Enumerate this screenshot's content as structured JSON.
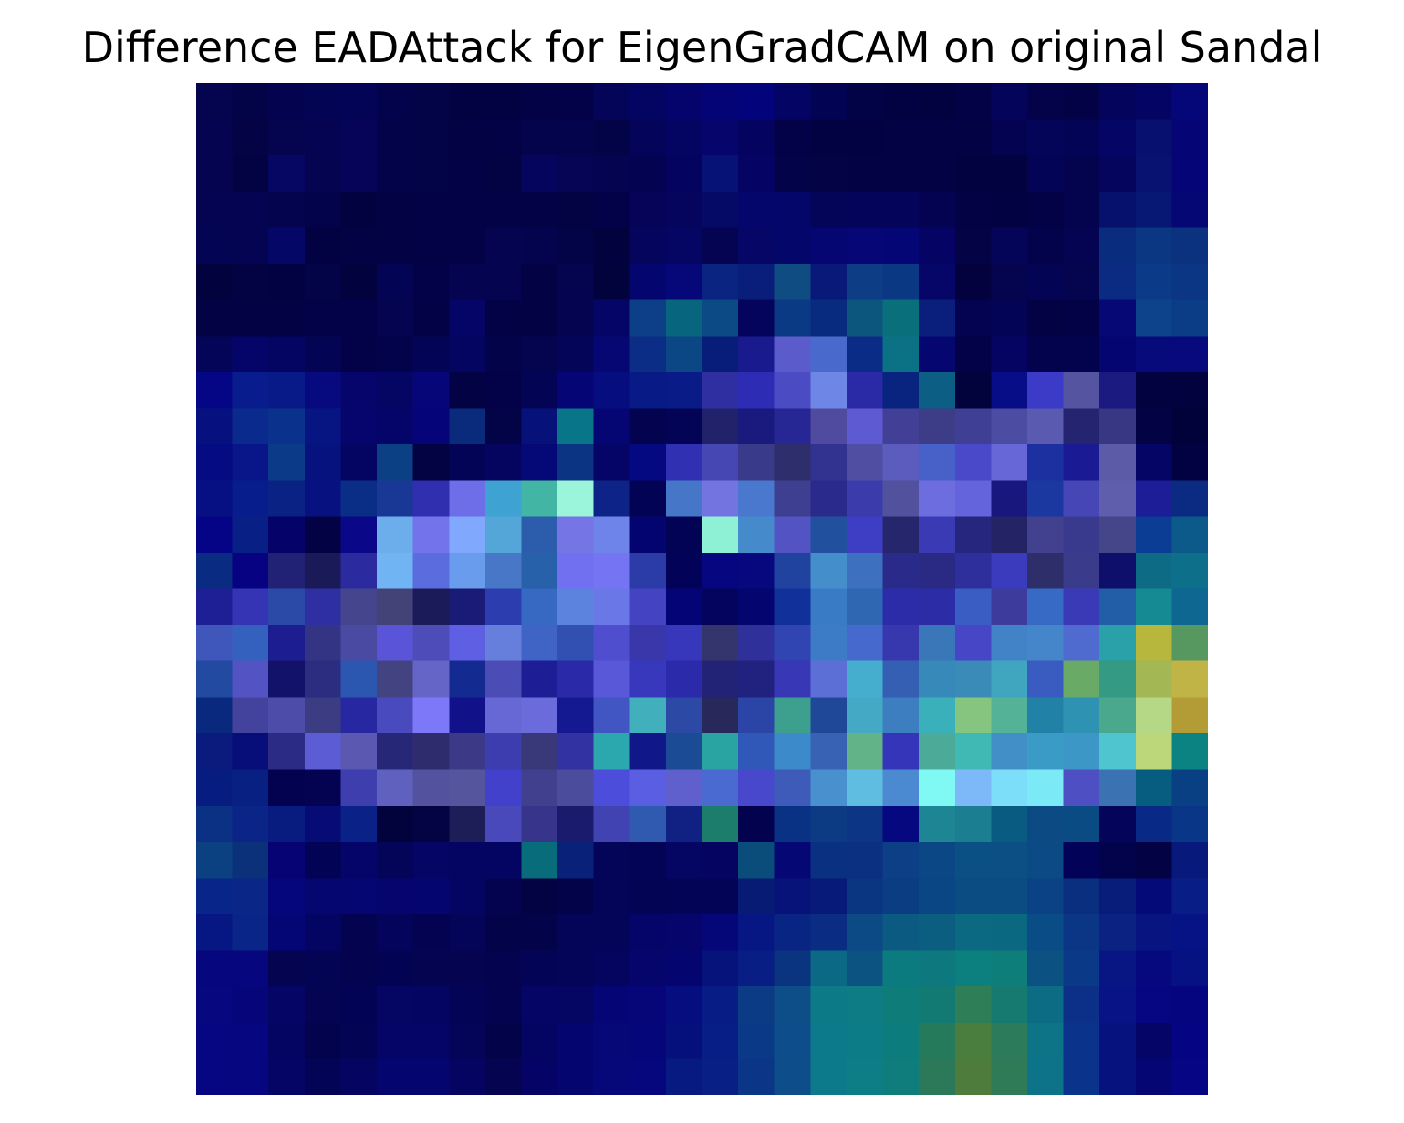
{
  "chart_data": {
    "type": "heatmap",
    "title": "Difference EADAttack for EigenGradCAM on original Sandal",
    "xlabel": "",
    "ylabel": "",
    "axes_visible": false,
    "grid": false,
    "rows": 28,
    "cols": 28,
    "colors": [
      [
        "#04044f",
        "#030348",
        "#030350",
        "#040455",
        "#040456",
        "#03034c",
        "#030348",
        "#020243",
        "#020242",
        "#030247",
        "#030249",
        "#040458",
        "#040463",
        "#04046c",
        "#040477",
        "#03037c",
        "#040465",
        "#030353",
        "#020246",
        "#020242",
        "#020241",
        "#030246",
        "#04045a",
        "#040249",
        "#030247",
        "#04045d",
        "#040464",
        "#050677"
      ],
      [
        "#040450",
        "#030346",
        "#04044f",
        "#040452",
        "#050458",
        "#03034a",
        "#030348",
        "#020244",
        "#030246",
        "#04044c",
        "#04044c",
        "#030348",
        "#04045a",
        "#040462",
        "#05056b",
        "#040460",
        "#030249",
        "#020243",
        "#020243",
        "#020244",
        "#020244",
        "#020245",
        "#030352",
        "#040458",
        "#040457",
        "#050566",
        "#07106f",
        "#050575"
      ],
      [
        "#040450",
        "#030344",
        "#050763",
        "#040450",
        "#050458",
        "#030349",
        "#030348",
        "#030247",
        "#030243",
        "#05055d",
        "#050455",
        "#040450",
        "#030351",
        "#040460",
        "#061275",
        "#050465",
        "#03034a",
        "#030346",
        "#020244",
        "#020244",
        "#020244",
        "#020240",
        "#020241",
        "#040457",
        "#04044e",
        "#05055e",
        "#081371",
        "#060578"
      ],
      [
        "#040452",
        "#040452",
        "#04044e",
        "#03034b",
        "#020241",
        "#020244",
        "#030247",
        "#030246",
        "#030246",
        "#030247",
        "#030243",
        "#030249",
        "#050458",
        "#05055e",
        "#060a67",
        "#05066c",
        "#050669",
        "#040458",
        "#04045a",
        "#04045a",
        "#030351",
        "#020244",
        "#020243",
        "#030247",
        "#04044e",
        "#05116c",
        "#061873",
        "#050874"
      ],
      [
        "#040455",
        "#040453",
        "#050766",
        "#020242",
        "#020244",
        "#020245",
        "#030246",
        "#030247",
        "#040451",
        "#04044e",
        "#030347",
        "#02023f",
        "#05055d",
        "#050563",
        "#040453",
        "#050665",
        "#05066a",
        "#060673",
        "#060676",
        "#050676",
        "#050464",
        "#030346",
        "#040459",
        "#03034b",
        "#040452",
        "#0a2c7f",
        "#0b3682",
        "#0b327f"
      ],
      [
        "#02023f",
        "#030242",
        "#020243",
        "#030348",
        "#02023f",
        "#040454",
        "#030248",
        "#040450",
        "#040450",
        "#030245",
        "#04044f",
        "#02023c",
        "#050570",
        "#06087a",
        "#0a2481",
        "#091e7b",
        "#0f4c81",
        "#09197a",
        "#0c3d85",
        "#0b3882",
        "#060668",
        "#03023f",
        "#04044f",
        "#040454",
        "#04044f",
        "#0b2b83",
        "#0b3a88",
        "#0b3683"
      ],
      [
        "#030244",
        "#030244",
        "#030244",
        "#030249",
        "#030249",
        "#040450",
        "#030246",
        "#050567",
        "#030247",
        "#030244",
        "#040451",
        "#050567",
        "#0c3f87",
        "#07667d",
        "#0b4a84",
        "#04045d",
        "#0b3a84",
        "#092b7f",
        "#0c557c",
        "#096f7b",
        "#0a1f7b",
        "#030352",
        "#040456",
        "#030244",
        "#030247",
        "#060875",
        "#0c438a",
        "#0b3d86"
      ],
      [
        "#040459",
        "#050469",
        "#040462",
        "#040454",
        "#030249",
        "#03034c",
        "#040457",
        "#040461",
        "#030349",
        "#04044f",
        "#040459",
        "#060772",
        "#0c2d86",
        "#0a4784",
        "#081c7a",
        "#1a1a8f",
        "#5b5bcb",
        "#4a69cc",
        "#0b2c86",
        "#0b7185",
        "#060670",
        "#030248",
        "#050462",
        "#03034d",
        "#03034d",
        "#050572",
        "#060a7a",
        "#07097c"
      ],
      [
        "#050685",
        "#081c8e",
        "#081a88",
        "#060a7e",
        "#05056b",
        "#050563",
        "#060679",
        "#030244",
        "#030248",
        "#040455",
        "#050575",
        "#060d7e",
        "#071a86",
        "#081b86",
        "#2f2fa2",
        "#2c2cb4",
        "#4b4bc3",
        "#6e86e6",
        "#2a2aa6",
        "#08247f",
        "#0c5e84",
        "#02023d",
        "#070c87",
        "#3b3bc7",
        "#5454a0",
        "#1a1a80",
        "#020240",
        "#02023f"
      ],
      [
        "#06117f",
        "#0a2a8e",
        "#0a328c",
        "#071583",
        "#05056d",
        "#050468",
        "#050478",
        "#0a2b7c",
        "#030347",
        "#06127a",
        "#087588",
        "#050574",
        "#030350",
        "#040457",
        "#22226a",
        "#19197e",
        "#262695",
        "#514b9f",
        "#5d5ad2",
        "#423f96",
        "#3d3c87",
        "#3f3f95",
        "#4d4ca3",
        "#5a5ab0",
        "#242470",
        "#373784",
        "#030245",
        "#02023a"
      ],
      [
        "#050b83",
        "#081689",
        "#0b3a89",
        "#06137e",
        "#040463",
        "#0c4085",
        "#030243",
        "#040456",
        "#050560",
        "#050978",
        "#0b3582",
        "#050467",
        "#050981",
        "#3030b3",
        "#4747b3",
        "#3a3a8a",
        "#2e2e6c",
        "#323290",
        "#4f4ea3",
        "#5b5cbd",
        "#4861c8",
        "#4949c9",
        "#6767d7",
        "#1d309f",
        "#1a1a95",
        "#5b5ba8",
        "#050565",
        "#020242"
      ],
      [
        "#061082",
        "#081d8c",
        "#0a2283",
        "#071180",
        "#0a2e86",
        "#193895",
        "#2f2fb0",
        "#6e6ee8",
        "#3ea3d2",
        "#42b5a5",
        "#9bf5db",
        "#0d2387",
        "#030355",
        "#4676c8",
        "#7474e0",
        "#4a78cf",
        "#3f3f91",
        "#2a2a8c",
        "#3b3bac",
        "#51519e",
        "#6d6de0",
        "#6464dd",
        "#17177d",
        "#1b38a1",
        "#4646b6",
        "#5e5ead",
        "#1d1d97",
        "#0b2b83"
      ],
      [
        "#050487",
        "#082086",
        "#050369",
        "#030244",
        "#0a0889",
        "#6cadeb",
        "#7373ec",
        "#80a8fd",
        "#55a6d8",
        "#2c5dac",
        "#7575e6",
        "#6f84ea",
        "#040471",
        "#030356",
        "#8ef1d6",
        "#458acb",
        "#5353c4",
        "#21509e",
        "#3e3ec5",
        "#26266c",
        "#3a3ab4",
        "#26267f",
        "#232366",
        "#414190",
        "#39398d",
        "#45458a",
        "#0c3d94",
        "#0b5a8a"
      ],
      [
        "#092b82",
        "#060281",
        "#212176",
        "#1b1a59",
        "#2b2b9f",
        "#70b4f3",
        "#5a6cde",
        "#699cec",
        "#4977c8",
        "#2661aa",
        "#7070f0",
        "#7575f4",
        "#2b3ba8",
        "#030259",
        "#060681",
        "#08087e",
        "#2143a0",
        "#438ecb",
        "#3e70c0",
        "#2a2a8a",
        "#2a2a84",
        "#2e2e9c",
        "#3b3bbd",
        "#2e2e6a",
        "#3b3b8c",
        "#0d0f6a",
        "#0d6b85",
        "#0e6f8a"
      ],
      [
        "#1e1e95",
        "#3434b5",
        "#2b4aa8",
        "#2f2fa4",
        "#45458e",
        "#434378",
        "#1b1b5a",
        "#1a1a77",
        "#2c3db0",
        "#3768c2",
        "#5c84de",
        "#6a78e7",
        "#4444c2",
        "#040476",
        "#04045e",
        "#050570",
        "#12309a",
        "#3a7bc6",
        "#3067b2",
        "#2c2ca8",
        "#2c2ca7",
        "#3a5dc4",
        "#3d3c9d",
        "#376ac4",
        "#3a3ab7",
        "#215ea7",
        "#158a92",
        "#0e6790"
      ],
      [
        "#3f56ba",
        "#3461be",
        "#1d1d92",
        "#343484",
        "#4a4aa2",
        "#5a55d8",
        "#4d4cb9",
        "#5f5fe3",
        "#667fdd",
        "#4064c6",
        "#3250b2",
        "#4e4ece",
        "#3937aa",
        "#3737bc",
        "#35356e",
        "#30309a",
        "#3044b2",
        "#3e7bc7",
        "#4669cd",
        "#3838ae",
        "#3a77b8",
        "#4646c6",
        "#4283c7",
        "#4586cb",
        "#4f6bcf",
        "#2aa0a8",
        "#b7b63d",
        "#56985f"
      ],
      [
        "#214aa0",
        "#5353c3",
        "#12126b",
        "#2c2c80",
        "#2c57b0",
        "#444381",
        "#6565c8",
        "#132a91",
        "#4c4cb6",
        "#1d1d96",
        "#2a2aa9",
        "#5958d9",
        "#3838bd",
        "#2a2aaa",
        "#222276",
        "#21217f",
        "#3838b7",
        "#5c6fd6",
        "#45aece",
        "#355fb3",
        "#3789b9",
        "#3a8bb8",
        "#40a6bf",
        "#3a5bbf",
        "#6aaa67",
        "#349a83",
        "#a3b855",
        "#c0b446"
      ],
      [
        "#08297d",
        "#43439d",
        "#4d4da9",
        "#3c3c83",
        "#2727a1",
        "#4a4abf",
        "#7d78f7",
        "#111189",
        "#6767d6",
        "#6b6bdb",
        "#141891",
        "#4156c3",
        "#41afbc",
        "#2b49a5",
        "#28285b",
        "#2a45a5",
        "#3d9f8e",
        "#1f4898",
        "#43a9c5",
        "#3c7ebf",
        "#3ab1ba",
        "#86c580",
        "#54b296",
        "#2281a6",
        "#2e92b2",
        "#4aa88c",
        "#b4d886",
        "#b39b36"
      ],
      [
        "#0b1b7d",
        "#070d79",
        "#2b2b85",
        "#5c5cd5",
        "#5a58b0",
        "#272777",
        "#2f2c6e",
        "#3c3a86",
        "#3d3daf",
        "#393979",
        "#3232a2",
        "#2aa8ad",
        "#101889",
        "#1b4b95",
        "#2aa3a3",
        "#3058b8",
        "#3c8aca",
        "#3862b4",
        "#63b389",
        "#3535b9",
        "#4baa98",
        "#40b9b5",
        "#418fc6",
        "#3a9bc6",
        "#3c97c6",
        "#4ec5cf",
        "#bbd779",
        "#0c8383"
      ],
      [
        "#071c81",
        "#072082",
        "#030251",
        "#030352",
        "#3e3eae",
        "#6061be",
        "#52529e",
        "#55559e",
        "#4141cc",
        "#40408f",
        "#4c4c9c",
        "#4d4ddb",
        "#5a5ee2",
        "#5f5fcd",
        "#4a6ad1",
        "#4848cc",
        "#3e5bb9",
        "#4890ce",
        "#5ebde1",
        "#4b8ad0",
        "#80f8f4",
        "#7db9f9",
        "#7ddef9",
        "#7ceaf6",
        "#4e4fc3",
        "#3a72b2",
        "#075d80",
        "#093f83"
      ],
      [
        "#0a3184",
        "#0a2488",
        "#081c80",
        "#070b75",
        "#0a2288",
        "#02023c",
        "#040445",
        "#1d1d57",
        "#4a49bb",
        "#36348b",
        "#1b1b6e",
        "#4243b3",
        "#2f5ab0",
        "#112083",
        "#1d7d6c",
        "#02024e",
        "#0a3284",
        "#0c3b83",
        "#0d3585",
        "#060880",
        "#1e8594",
        "#1c7f91",
        "#095b82",
        "#0c4a84",
        "#0a4b83",
        "#04045a",
        "#082a86",
        "#093687"
      ],
      [
        "#0b4181",
        "#0b317b",
        "#060474",
        "#030356",
        "#050569",
        "#040458",
        "#050566",
        "#040462",
        "#040462",
        "#086c7b",
        "#092178",
        "#040459",
        "#040457",
        "#050564",
        "#050561",
        "#0a4d7b",
        "#050775",
        "#0a3081",
        "#0b2f81",
        "#0c3f85",
        "#0b4685",
        "#0b5084",
        "#0b4f84",
        "#0b4a84",
        "#030259",
        "#03034c",
        "#020245",
        "#071a7b"
      ],
      [
        "#082689",
        "#0a2686",
        "#06067c",
        "#060670",
        "#050671",
        "#05056d",
        "#050570",
        "#040462",
        "#030350",
        "#030243",
        "#030349",
        "#040459",
        "#040455",
        "#040456",
        "#040456",
        "#071b75",
        "#071378",
        "#071a7a",
        "#0a3681",
        "#0b3d82",
        "#0b4684",
        "#0b4d83",
        "#0b4c83",
        "#0b4285",
        "#092f7e",
        "#081c7a",
        "#050a79",
        "#081d85"
      ],
      [
        "#061682",
        "#0a2588",
        "#050676",
        "#040463",
        "#030350",
        "#04045c",
        "#030352",
        "#040458",
        "#030349",
        "#03034a",
        "#040458",
        "#040458",
        "#050569",
        "#05056c",
        "#050677",
        "#061682",
        "#092583",
        "#0a2d83",
        "#0c4a85",
        "#0b5a82",
        "#0b5e80",
        "#0b6981",
        "#0b6881",
        "#0a4d86",
        "#0b3585",
        "#0b2283",
        "#081581",
        "#061385"
      ],
      [
        "#06067f",
        "#06067e",
        "#040451",
        "#040454",
        "#030350",
        "#030353",
        "#040450",
        "#040451",
        "#030350",
        "#040456",
        "#040459",
        "#050560",
        "#05056c",
        "#050570",
        "#06137b",
        "#081e85",
        "#0a3380",
        "#0c6985",
        "#0c5382",
        "#0c7b80",
        "#0d787d",
        "#0c807f",
        "#0d7e7a",
        "#0b5283",
        "#0a3987",
        "#071682",
        "#06097e",
        "#061182"
      ],
      [
        "#070780",
        "#06067a",
        "#050566",
        "#040452",
        "#030356",
        "#050564",
        "#040462",
        "#040457",
        "#030350",
        "#050566",
        "#050564",
        "#050575",
        "#060679",
        "#060d7e",
        "#071c84",
        "#0c3b85",
        "#0d4e88",
        "#0c7a87",
        "#0d7c84",
        "#0e7d7a",
        "#127a72",
        "#2e7e58",
        "#167a71",
        "#0c6c83",
        "#0c3087",
        "#081486",
        "#060582",
        "#05057f"
      ],
      [
        "#060683",
        "#060680",
        "#040463",
        "#03034d",
        "#040455",
        "#050568",
        "#050567",
        "#040458",
        "#030349",
        "#040462",
        "#050570",
        "#060878",
        "#06067b",
        "#06107c",
        "#081e87",
        "#0a3a87",
        "#0d4d8c",
        "#0c7a8b",
        "#0c7c86",
        "#0d7c7c",
        "#267a5c",
        "#4a7e3f",
        "#2c7b5a",
        "#0d7387",
        "#0a338b",
        "#06127e",
        "#050467",
        "#050583"
      ],
      [
        "#060683",
        "#060681",
        "#050565",
        "#040456",
        "#050561",
        "#050570",
        "#050570",
        "#050461",
        "#040450",
        "#050466",
        "#050570",
        "#060779",
        "#06077c",
        "#071a81",
        "#081f86",
        "#0b3587",
        "#0d4d8a",
        "#0c7a8a",
        "#0d7d86",
        "#0e7d7b",
        "#2b7958",
        "#4d7c3c",
        "#2f7a57",
        "#0d7388",
        "#0a348c",
        "#06137e",
        "#050574",
        "#060684"
      ]
    ]
  }
}
